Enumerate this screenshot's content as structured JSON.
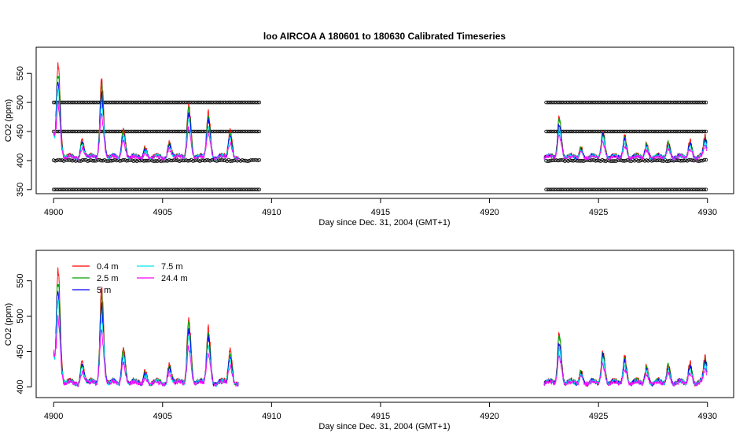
{
  "chart_data": [
    {
      "type": "line",
      "title": "loo   AIRCOA  A    180601  to  180630   Calibrated Timeseries",
      "xlabel": "Day since Dec. 31, 2004 (GMT+1)",
      "ylabel": "CO2 (ppm)",
      "xlim": [
        4899.2,
        4931.2
      ],
      "ylim": [
        343,
        595
      ],
      "xticks": [
        4900,
        4905,
        4910,
        4915,
        4920,
        4925,
        4930
      ],
      "yticks": [
        350,
        400,
        450,
        500,
        550
      ],
      "grid": false,
      "reference_points": {
        "levels": [
          500,
          450,
          400,
          350
        ],
        "segments": [
          [
            4900,
            4909.5
          ],
          [
            4922.6,
            4930.0
          ]
        ],
        "marker": "open-circle"
      },
      "series": [
        {
          "name": "0.4 m",
          "color": "#ff0000"
        },
        {
          "name": "2.5 m",
          "color": "#00a000"
        },
        {
          "name": "5 m",
          "color": "#0000ff"
        },
        {
          "name": "7.5 m",
          "color": "#00e5e5"
        },
        {
          "name": "24.4 m",
          "color": "#ff00ff"
        }
      ],
      "peaks": [
        {
          "x": 4900.2,
          "y": 575
        },
        {
          "x": 4901.3,
          "y": 440
        },
        {
          "x": 4902.2,
          "y": 545
        },
        {
          "x": 4903.2,
          "y": 462
        },
        {
          "x": 4904.2,
          "y": 428
        },
        {
          "x": 4905.3,
          "y": 438
        },
        {
          "x": 4906.2,
          "y": 505
        },
        {
          "x": 4907.1,
          "y": 488
        },
        {
          "x": 4908.1,
          "y": 455
        },
        {
          "x": 4923.2,
          "y": 480
        },
        {
          "x": 4924.2,
          "y": 428
        },
        {
          "x": 4925.2,
          "y": 458
        },
        {
          "x": 4926.2,
          "y": 448
        },
        {
          "x": 4927.2,
          "y": 435
        },
        {
          "x": 4928.2,
          "y": 438
        },
        {
          "x": 4929.2,
          "y": 440
        },
        {
          "x": 4929.9,
          "y": 438
        }
      ],
      "baseline": 404,
      "data_gap": [
        4908.5,
        4922.5
      ]
    },
    {
      "type": "line",
      "title": "",
      "xlabel": "Day since Dec. 31, 2004 (GMT+1)",
      "ylabel": "CO2 (ppm)",
      "xlim": [
        4899.2,
        4931.2
      ],
      "ylim": [
        385,
        593
      ],
      "xticks": [
        4900,
        4905,
        4910,
        4915,
        4920,
        4925,
        4930
      ],
      "yticks": [
        400,
        450,
        500,
        550
      ],
      "grid": false,
      "legend_position": "top-left",
      "series": [
        {
          "name": "0.4 m",
          "color": "#ff0000"
        },
        {
          "name": "2.5 m",
          "color": "#00a000"
        },
        {
          "name": "5 m",
          "color": "#0000ff"
        },
        {
          "name": "7.5 m",
          "color": "#00e5e5"
        },
        {
          "name": "24.4 m",
          "color": "#ff00ff"
        }
      ]
    }
  ]
}
